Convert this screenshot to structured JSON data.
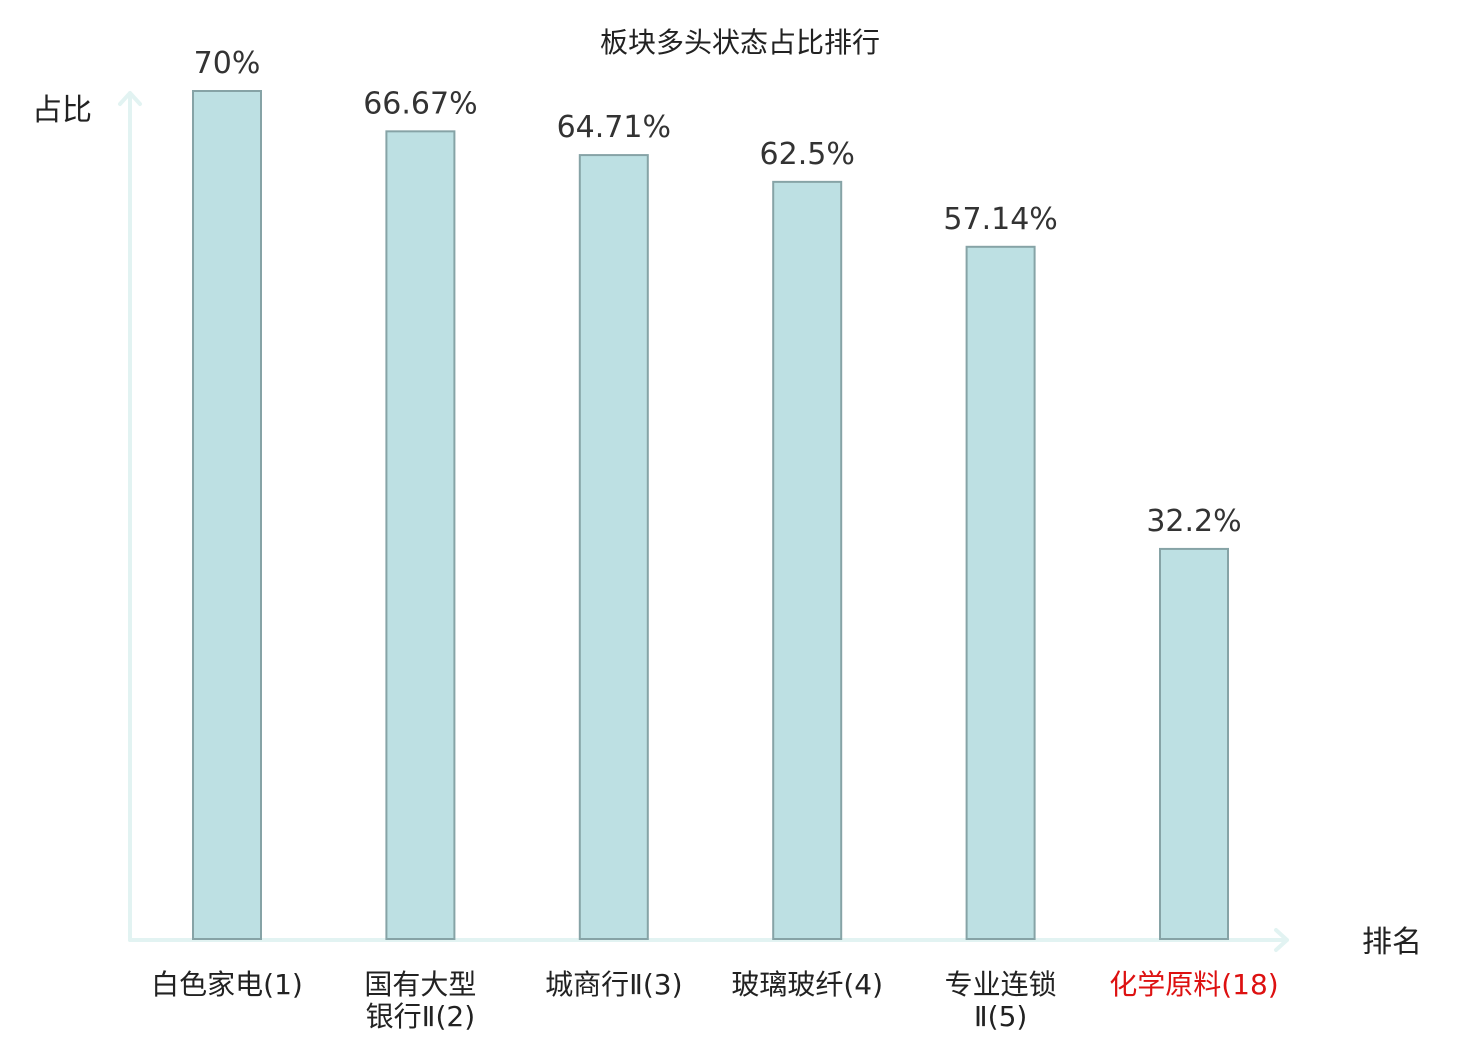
{
  "chart_data": {
    "type": "bar",
    "title": "板块多头状态占比排行",
    "xlabel": "排名",
    "ylabel": "占比",
    "categories": [
      [
        "白色家电(1)"
      ],
      [
        "国有大型",
        "银行Ⅱ(2)"
      ],
      [
        "城商行Ⅱ(3)"
      ],
      [
        "玻璃玻纤(4)"
      ],
      [
        "专业连锁",
        "Ⅱ(5)"
      ],
      [
        "化学原料(18)"
      ]
    ],
    "values": [
      70,
      66.67,
      64.71,
      62.5,
      57.14,
      32.2
    ],
    "value_labels": [
      "70%",
      "66.67%",
      "64.71%",
      "62.5%",
      "57.14%",
      "32.2%"
    ],
    "category_colors": [
      "#222222",
      "#222222",
      "#222222",
      "#222222",
      "#222222",
      "#dd1111"
    ],
    "ylim": [
      0,
      70
    ],
    "grid": false,
    "colors": {
      "bar_fill": "#bde0e3",
      "bar_stroke": "#86a3a6",
      "axis": "#e2f3f2",
      "highlight": "#dd1111"
    }
  }
}
